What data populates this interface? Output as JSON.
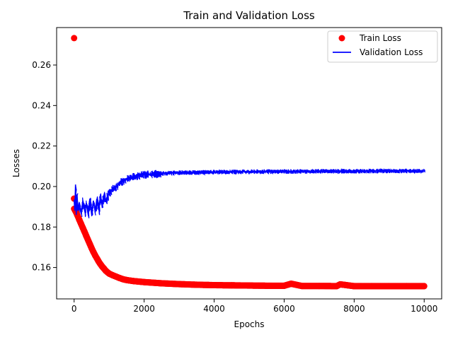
{
  "chart_data": {
    "type": "scatter",
    "title": "Train and Validation Loss",
    "xlabel": "Epochs",
    "ylabel": "Losses",
    "xlim": [
      -500,
      10500
    ],
    "ylim": [
      0.1445,
      0.2785
    ],
    "x_ticks": [
      0,
      2000,
      4000,
      6000,
      8000,
      10000
    ],
    "x_tick_labels": [
      "0",
      "2000",
      "4000",
      "6000",
      "8000",
      "10000"
    ],
    "y_ticks": [
      0.16,
      0.18,
      0.2,
      0.22,
      0.24,
      0.26
    ],
    "y_tick_labels": [
      "0.16",
      "0.18",
      "0.20",
      "0.22",
      "0.24",
      "0.26"
    ],
    "grid": false,
    "legend": {
      "position": "top-right",
      "entries": [
        {
          "label": "Train Loss",
          "marker": "circle",
          "color": "#ff0000"
        },
        {
          "label": "Validation Loss",
          "marker": "line",
          "color": "#0000ff"
        }
      ]
    },
    "series": [
      {
        "name": "Train Loss",
        "style": "points",
        "color": "#ff0000",
        "points": [
          [
            0,
            0.2733
          ],
          [
            0,
            0.194
          ],
          [
            0,
            0.189
          ],
          [
            50,
            0.1875
          ],
          [
            100,
            0.1855
          ],
          [
            150,
            0.1835
          ],
          [
            200,
            0.1815
          ],
          [
            250,
            0.1795
          ],
          [
            300,
            0.1775
          ],
          [
            350,
            0.1755
          ],
          [
            400,
            0.1735
          ],
          [
            450,
            0.1715
          ],
          [
            500,
            0.1695
          ],
          [
            550,
            0.1677
          ],
          [
            600,
            0.166
          ],
          [
            650,
            0.1645
          ],
          [
            700,
            0.163
          ],
          [
            750,
            0.1617
          ],
          [
            800,
            0.1605
          ],
          [
            850,
            0.1595
          ],
          [
            900,
            0.1585
          ],
          [
            950,
            0.1577
          ],
          [
            1000,
            0.157
          ],
          [
            1100,
            0.1562
          ],
          [
            1200,
            0.1555
          ],
          [
            1300,
            0.1548
          ],
          [
            1400,
            0.1542
          ],
          [
            1500,
            0.1538
          ],
          [
            1700,
            0.1533
          ],
          [
            2000,
            0.1528
          ],
          [
            2500,
            0.1522
          ],
          [
            3000,
            0.1518
          ],
          [
            3500,
            0.1515
          ],
          [
            4000,
            0.1513
          ],
          [
            4500,
            0.1512
          ],
          [
            5000,
            0.1511
          ],
          [
            5500,
            0.151
          ],
          [
            6000,
            0.151
          ],
          [
            6200,
            0.152
          ],
          [
            6500,
            0.1509
          ],
          [
            7000,
            0.1509
          ],
          [
            7500,
            0.1508
          ],
          [
            7600,
            0.1517
          ],
          [
            8000,
            0.1508
          ],
          [
            8500,
            0.1508
          ],
          [
            9000,
            0.1508
          ],
          [
            9500,
            0.1508
          ],
          [
            10000,
            0.1508
          ]
        ]
      },
      {
        "name": "Validation Loss",
        "style": "line",
        "color": "#0000ff",
        "points": [
          [
            0,
            0.1935
          ],
          [
            20,
            0.188
          ],
          [
            40,
            0.201
          ],
          [
            60,
            0.186
          ],
          [
            80,
            0.196
          ],
          [
            100,
            0.188
          ],
          [
            150,
            0.192
          ],
          [
            200,
            0.187
          ],
          [
            250,
            0.193
          ],
          [
            300,
            0.188
          ],
          [
            350,
            0.192
          ],
          [
            400,
            0.187
          ],
          [
            450,
            0.194
          ],
          [
            500,
            0.186
          ],
          [
            550,
            0.193
          ],
          [
            600,
            0.188
          ],
          [
            650,
            0.194
          ],
          [
            700,
            0.189
          ],
          [
            750,
            0.195
          ],
          [
            800,
            0.191
          ],
          [
            850,
            0.196
          ],
          [
            900,
            0.193
          ],
          [
            1000,
            0.197
          ],
          [
            1100,
            0.199
          ],
          [
            1200,
            0.2
          ],
          [
            1300,
            0.202
          ],
          [
            1400,
            0.203
          ],
          [
            1500,
            0.204
          ],
          [
            1600,
            0.2045
          ],
          [
            1700,
            0.205
          ],
          [
            1800,
            0.2055
          ],
          [
            2000,
            0.206
          ],
          [
            2500,
            0.2065
          ],
          [
            3000,
            0.207
          ],
          [
            3500,
            0.207
          ],
          [
            4000,
            0.2072
          ],
          [
            5000,
            0.2074
          ],
          [
            6000,
            0.2075
          ],
          [
            7000,
            0.2076
          ],
          [
            8000,
            0.2077
          ],
          [
            9000,
            0.2078
          ],
          [
            10000,
            0.2078
          ]
        ]
      }
    ]
  }
}
